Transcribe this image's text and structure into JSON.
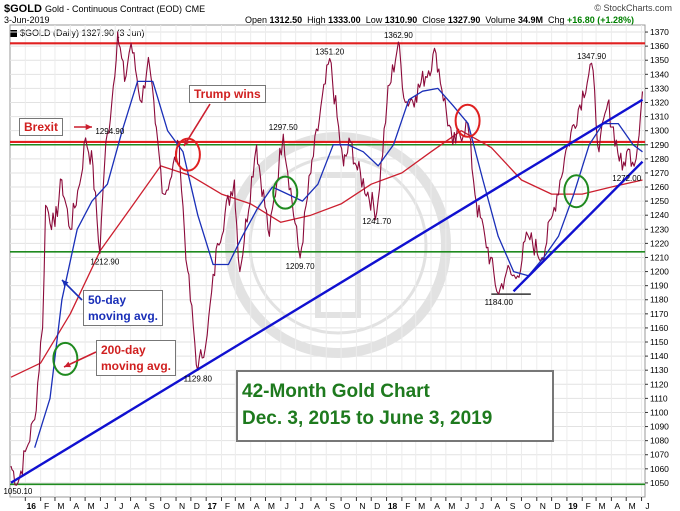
{
  "header": {
    "symbol": "$GOLD",
    "description": "Gold - Continuous Contract (EOD)",
    "exchange": "CME",
    "date": "3-Jun-2019",
    "open_label": "Open",
    "open": "1312.50",
    "high_label": "High",
    "high": "1333.00",
    "low_label": "Low",
    "low": "1310.90",
    "close_label": "Close",
    "close": "1327.90",
    "volume_label": "Volume",
    "volume": "34.9M",
    "chg_label": "Chg",
    "chg": "+16.80 (+1.28%)",
    "brand": "© StockCharts.com",
    "legend": "$GOLD (Daily) 1327.90 (3 Jun)"
  },
  "annotations": {
    "brexit": "Brexit",
    "trump": "Trump wins",
    "ma50": [
      "50-day",
      "moving avg."
    ],
    "ma200": [
      "200-day",
      "moving avg."
    ],
    "title_box": [
      "42-Month Gold Chart",
      "Dec. 3, 2015 to June 3, 2019"
    ]
  },
  "colors": {
    "price": "#8b0a3a",
    "ma50": "#1a2fb8",
    "ma200": "#cc1f2f",
    "resistance": "#e02020",
    "support": "#1f8a1f",
    "trend": "#1010d0",
    "title": "#1e7a1e"
  },
  "chart_data": {
    "type": "line",
    "x_ticks": [
      "16",
      "F",
      "M",
      "A",
      "M",
      "J",
      "J",
      "A",
      "S",
      "O",
      "N",
      "D",
      "17",
      "F",
      "M",
      "A",
      "M",
      "J",
      "J",
      "A",
      "S",
      "O",
      "N",
      "D",
      "18",
      "F",
      "M",
      "A",
      "M",
      "J",
      "J",
      "A",
      "S",
      "O",
      "N",
      "D",
      "19",
      "F",
      "M",
      "A",
      "M",
      "J"
    ],
    "ylim": [
      1040,
      1375
    ],
    "y_ticks": [
      1050,
      1060,
      1070,
      1080,
      1090,
      1100,
      1110,
      1120,
      1130,
      1140,
      1150,
      1160,
      1170,
      1180,
      1190,
      1200,
      1210,
      1220,
      1230,
      1240,
      1250,
      1260,
      1270,
      1280,
      1290,
      1300,
      1310,
      1320,
      1330,
      1340,
      1350,
      1360,
      1370
    ],
    "series": [
      {
        "name": "$GOLD (Daily)",
        "x": [
          "2015-12-03",
          "2015-12-17",
          "2016-01-04",
          "2016-01-20",
          "2016-02-05",
          "2016-02-11",
          "2016-03-01",
          "2016-03-15",
          "2016-04-01",
          "2016-04-20",
          "2016-05-02",
          "2016-05-17",
          "2016-05-31",
          "2016-06-10",
          "2016-06-24",
          "2016-07-06",
          "2016-07-20",
          "2016-08-02",
          "2016-08-24",
          "2016-09-06",
          "2016-09-20",
          "2016-10-07",
          "2016-10-20",
          "2016-11-08",
          "2016-11-09",
          "2016-11-25",
          "2016-12-15",
          "2017-01-03",
          "2017-01-24",
          "2017-02-27",
          "2017-03-10",
          "2017-04-13",
          "2017-05-09",
          "2017-06-06",
          "2017-07-10",
          "2017-08-01",
          "2017-09-08",
          "2017-10-06",
          "2017-10-20",
          "2017-11-01",
          "2017-12-12",
          "2018-01-02",
          "2018-01-25",
          "2018-02-08",
          "2018-03-01",
          "2018-04-11",
          "2018-05-15",
          "2018-06-14",
          "2018-07-02",
          "2018-07-19",
          "2018-08-16",
          "2018-09-01",
          "2018-09-20",
          "2018-10-15",
          "2018-11-12",
          "2018-12-03",
          "2019-01-03",
          "2019-02-20",
          "2019-03-07",
          "2019-03-25",
          "2019-04-23",
          "2019-05-02",
          "2019-05-21",
          "2019-06-03"
        ],
        "values": [
          1062,
          1050.1,
          1075,
          1095,
          1160,
          1247,
          1232,
          1265,
          1230,
          1262,
          1294.9,
          1275,
          1212.9,
          1280,
          1320,
          1370,
          1335,
          1362,
          1320,
          1352,
          1305,
          1255,
          1265,
          1290,
          1275,
          1200,
          1129.8,
          1155,
          1220,
          1265,
          1200,
          1290,
          1225,
          1297.5,
          1209.7,
          1270,
          1351.2,
          1275,
          1292,
          1275,
          1241.7,
          1320,
          1362.9,
          1320,
          1325,
          1355,
          1290,
          1305,
          1248,
          1225,
          1184,
          1200,
          1195,
          1225,
          1210,
          1240,
          1290,
          1347.9,
          1285,
          1320,
          1272,
          1285,
          1280,
          1327.9
        ]
      }
    ],
    "moving_averages": [
      {
        "name": "50-day moving avg.",
        "x": [
          "2016-01-20",
          "2016-02-20",
          "2016-03-15",
          "2016-04-15",
          "2016-05-15",
          "2016-06-15",
          "2016-07-15",
          "2016-08-15",
          "2016-09-15",
          "2016-10-15",
          "2016-11-15",
          "2016-12-15",
          "2017-01-15",
          "2017-02-15",
          "2017-03-15",
          "2017-04-15",
          "2017-05-15",
          "2017-06-15",
          "2017-07-15",
          "2017-08-15",
          "2017-09-15",
          "2017-10-15",
          "2017-11-15",
          "2017-12-15",
          "2018-01-15",
          "2018-02-15",
          "2018-03-15",
          "2018-04-15",
          "2018-05-15",
          "2018-06-15",
          "2018-07-15",
          "2018-08-15",
          "2018-09-15",
          "2018-10-15",
          "2018-11-15",
          "2018-12-15",
          "2019-01-15",
          "2019-02-15",
          "2019-03-15",
          "2019-04-15",
          "2019-05-15",
          "2019-06-03"
        ],
        "values": [
          1075,
          1110,
          1180,
          1230,
          1250,
          1262,
          1300,
          1335,
          1335,
          1300,
          1285,
          1240,
          1205,
          1205,
          1225,
          1245,
          1260,
          1255,
          1250,
          1262,
          1290,
          1290,
          1285,
          1275,
          1290,
          1322,
          1328,
          1330,
          1318,
          1305,
          1265,
          1225,
          1200,
          1197,
          1210,
          1225,
          1255,
          1290,
          1305,
          1305,
          1290,
          1285
        ]
      },
      {
        "name": "200-day moving avg.",
        "x": [
          "2015-12-03",
          "2016-02-01",
          "2016-04-01",
          "2016-06-01",
          "2016-08-01",
          "2016-10-01",
          "2016-12-01",
          "2017-02-01",
          "2017-04-01",
          "2017-06-01",
          "2017-08-01",
          "2017-10-01",
          "2017-12-01",
          "2018-02-01",
          "2018-04-01",
          "2018-06-01",
          "2018-08-01",
          "2018-10-01",
          "2018-12-01",
          "2019-02-01",
          "2019-04-01",
          "2019-06-03"
        ],
        "values": [
          1125,
          1135,
          1170,
          1215,
          1245,
          1275,
          1268,
          1255,
          1248,
          1235,
          1240,
          1248,
          1262,
          1270,
          1285,
          1300,
          1288,
          1265,
          1255,
          1255,
          1260,
          1265
        ]
      }
    ],
    "horizontal_lines": [
      {
        "kind": "resistance",
        "value": 1362
      },
      {
        "kind": "resistance",
        "value": 1292
      },
      {
        "kind": "support",
        "value": 1290
      },
      {
        "kind": "support",
        "value": 1214
      },
      {
        "kind": "support",
        "value": 1049
      }
    ],
    "trendlines": [
      {
        "from": {
          "x": "2015-12-03",
          "y": 1050.1
        },
        "to": {
          "x": "2019-06-03",
          "y": 1322
        }
      },
      {
        "from": {
          "x": "2018-09-15",
          "y": 1186
        },
        "to": {
          "x": "2019-06-03",
          "y": 1278
        }
      }
    ],
    "base_line": {
      "x": [
        "2018-08-01",
        "2018-10-20"
      ],
      "y": 1184
    },
    "price_labels": [
      {
        "x": "2016-06-20",
        "y": 1294.9,
        "text": "1294.90"
      },
      {
        "x": "2016-06-10",
        "y": 1212.9,
        "text": "1212.90"
      },
      {
        "x": "2015-12-17",
        "y": 1050.1,
        "text": "1050.10"
      },
      {
        "x": "2016-12-15",
        "y": 1129.8,
        "text": "1129.80"
      },
      {
        "x": "2017-06-06",
        "y": 1297.5,
        "text": "1297.50"
      },
      {
        "x": "2017-07-10",
        "y": 1209.7,
        "text": "1209.70"
      },
      {
        "x": "2017-09-08",
        "y": 1351.2,
        "text": "1351.20"
      },
      {
        "x": "2017-12-12",
        "y": 1241.7,
        "text": "1241.70"
      },
      {
        "x": "2018-01-25",
        "y": 1362.9,
        "text": "1362.90"
      },
      {
        "x": "2018-08-16",
        "y": 1184,
        "text": "1184.00"
      },
      {
        "x": "2019-02-20",
        "y": 1347.9,
        "text": "1347.90"
      },
      {
        "x": "2019-05-02",
        "y": 1272,
        "text": "1272.00"
      }
    ],
    "circles": [
      {
        "x": "2016-03-22",
        "y": 1138,
        "color": "support"
      },
      {
        "x": "2016-11-25",
        "y": 1283,
        "color": "resistance"
      },
      {
        "x": "2017-06-10",
        "y": 1256,
        "color": "support"
      },
      {
        "x": "2018-06-14",
        "y": 1307,
        "color": "resistance"
      },
      {
        "x": "2019-01-20",
        "y": 1257,
        "color": "support"
      }
    ]
  }
}
